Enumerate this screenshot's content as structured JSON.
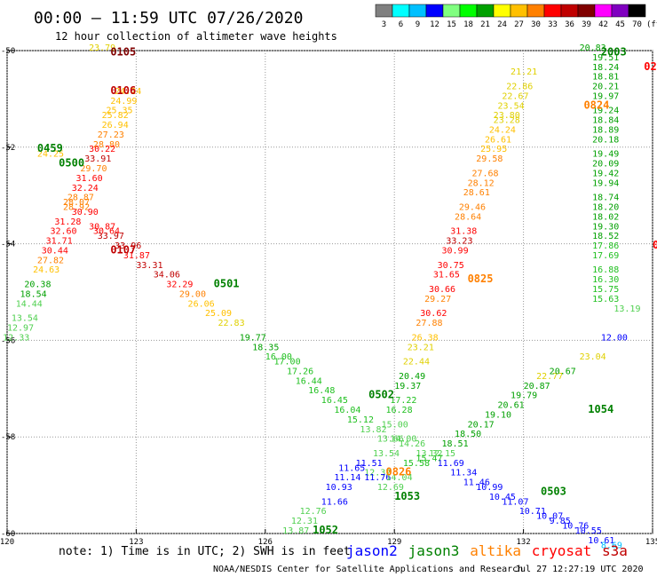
{
  "header": {
    "title": "00:00 – 11:59 UTC 07/26/2020",
    "subtitle": "12 hour collection of altimeter wave heights"
  },
  "colorbar": {
    "unit": "(ft)",
    "bins": [
      {
        "label": "3",
        "color": "#808080"
      },
      {
        "label": "6",
        "color": "#00ffff"
      },
      {
        "label": "9",
        "color": "#00c0ff"
      },
      {
        "label": "12",
        "color": "#0000ff"
      },
      {
        "label": "15",
        "color": "#80ff80"
      },
      {
        "label": "18",
        "color": "#00ff00"
      },
      {
        "label": "21",
        "color": "#00a000"
      },
      {
        "label": "24",
        "color": "#ffff00"
      },
      {
        "label": "27",
        "color": "#ffc000"
      },
      {
        "label": "30",
        "color": "#ff8000"
      },
      {
        "label": "33",
        "color": "#ff0000"
      },
      {
        "label": "36",
        "color": "#c00000"
      },
      {
        "label": "39",
        "color": "#800000"
      },
      {
        "label": "42",
        "color": "#ff00ff"
      },
      {
        "label": "45",
        "color": "#8000c0"
      },
      {
        "label": "70",
        "color": "#000000"
      }
    ]
  },
  "chart_data": {
    "type": "scatter",
    "xlim": [
      120,
      135
    ],
    "ylim": [
      -60,
      -50
    ],
    "x_ticks": [
      "120",
      "123",
      "126",
      "129",
      "132",
      "135"
    ],
    "y_ticks": [
      "-50",
      "-52",
      "-54",
      "-56",
      "-58",
      "-60"
    ],
    "grid": true,
    "series": [
      {
        "points": [
          {
            "x": 122.5,
            "y": -50.9,
            "v": "24.24"
          },
          {
            "x": 122.4,
            "y": -51.1,
            "v": "24.99"
          },
          {
            "x": 122.3,
            "y": -51.3,
            "v": "25.35"
          },
          {
            "x": 122.2,
            "y": -51.4,
            "v": "25.82"
          },
          {
            "x": 122.2,
            "y": -51.6,
            "v": "26.94"
          },
          {
            "x": 122.1,
            "y": -51.8,
            "v": "27.23"
          },
          {
            "x": 122.0,
            "y": -52.0,
            "v": "28.80"
          },
          {
            "x": 121.9,
            "y": -52.1,
            "v": "30.22"
          },
          {
            "x": 121.8,
            "y": -52.3,
            "v": "33.91"
          },
          {
            "x": 121.7,
            "y": -52.5,
            "v": "29.70"
          },
          {
            "x": 121.6,
            "y": -52.7,
            "v": "31.60"
          },
          {
            "x": 121.5,
            "y": -52.9,
            "v": "32.24"
          },
          {
            "x": 121.4,
            "y": -53.1,
            "v": "28.87"
          },
          {
            "x": 121.3,
            "y": -53.3,
            "v": "28.92"
          },
          {
            "x": 121.1,
            "y": -53.6,
            "v": "31.28"
          },
          {
            "x": 121.0,
            "y": -53.8,
            "v": "32.60"
          },
          {
            "x": 120.9,
            "y": -54.0,
            "v": "31.71"
          },
          {
            "x": 120.8,
            "y": -54.2,
            "v": "30.44"
          },
          {
            "x": 120.7,
            "y": -54.4,
            "v": "27.82"
          },
          {
            "x": 120.6,
            "y": -54.6,
            "v": "24.63"
          },
          {
            "x": 120.4,
            "y": -54.9,
            "v": "20.38"
          },
          {
            "x": 120.3,
            "y": -55.1,
            "v": "18.54"
          },
          {
            "x": 120.2,
            "y": -55.3,
            "v": "14.44"
          },
          {
            "x": 120.1,
            "y": -55.6,
            "v": "13.54"
          },
          {
            "x": 120.0,
            "y": -55.8,
            "v": "12.97"
          },
          {
            "x": 119.9,
            "y": -56.0,
            "v": "12.33"
          },
          {
            "x": 131.7,
            "y": -50.5,
            "v": "21.21"
          },
          {
            "x": 131.6,
            "y": -50.8,
            "v": "22.86"
          },
          {
            "x": 131.5,
            "y": -51.0,
            "v": "22.67"
          },
          {
            "x": 131.4,
            "y": -51.2,
            "v": "23.54"
          },
          {
            "x": 131.3,
            "y": -51.4,
            "v": "23.80"
          },
          {
            "x": 131.3,
            "y": -51.5,
            "v": "23.28"
          },
          {
            "x": 131.2,
            "y": -51.7,
            "v": "24.24"
          },
          {
            "x": 131.1,
            "y": -51.9,
            "v": "26.61"
          },
          {
            "x": 131.0,
            "y": -52.1,
            "v": "25.95"
          },
          {
            "x": 130.9,
            "y": -52.3,
            "v": "29.58"
          },
          {
            "x": 130.8,
            "y": -52.6,
            "v": "27.68"
          },
          {
            "x": 130.7,
            "y": -52.8,
            "v": "28.12"
          },
          {
            "x": 130.6,
            "y": -53.0,
            "v": "28.61"
          },
          {
            "x": 130.5,
            "y": -53.3,
            "v": "29.46"
          },
          {
            "x": 130.4,
            "y": -53.5,
            "v": "28.64"
          },
          {
            "x": 130.3,
            "y": -53.8,
            "v": "31.38"
          },
          {
            "x": 130.2,
            "y": -54.0,
            "v": "33.23"
          },
          {
            "x": 130.1,
            "y": -54.2,
            "v": "30.99"
          },
          {
            "x": 130.0,
            "y": -54.5,
            "v": "30.75"
          },
          {
            "x": 129.9,
            "y": -54.7,
            "v": "31.65"
          },
          {
            "x": 129.8,
            "y": -55.0,
            "v": "30.66"
          },
          {
            "x": 129.7,
            "y": -55.2,
            "v": "29.27"
          },
          {
            "x": 129.6,
            "y": -55.5,
            "v": "30.62"
          },
          {
            "x": 129.5,
            "y": -55.7,
            "v": "27.88"
          },
          {
            "x": 129.4,
            "y": -56.0,
            "v": "26.38"
          },
          {
            "x": 129.3,
            "y": -56.2,
            "v": "23.21"
          },
          {
            "x": 129.2,
            "y": -56.5,
            "v": "22.44"
          },
          {
            "x": 129.1,
            "y": -56.8,
            "v": "20.49"
          },
          {
            "x": 129.0,
            "y": -57.0,
            "v": "19.37"
          },
          {
            "x": 128.9,
            "y": -57.3,
            "v": "17.22"
          },
          {
            "x": 128.8,
            "y": -57.5,
            "v": "16.28"
          },
          {
            "x": 128.7,
            "y": -57.8,
            "v": "15.00"
          },
          {
            "x": 128.6,
            "y": -58.1,
            "v": "13.66"
          },
          {
            "x": 128.5,
            "y": -58.4,
            "v": "13.54"
          },
          {
            "x": 128.3,
            "y": -58.8,
            "v": "12.32"
          },
          {
            "x": 121.9,
            "y": -50.0,
            "v": "23.79"
          },
          {
            "x": 120.7,
            "y": -52.2,
            "v": "24.25"
          },
          {
            "x": 121.3,
            "y": -53.2,
            "v": "28.07"
          },
          {
            "x": 121.5,
            "y": -53.4,
            "v": "30.90"
          },
          {
            "x": 121.9,
            "y": -53.7,
            "v": "30.87"
          },
          {
            "x": 122.0,
            "y": -53.8,
            "v": "30.64"
          },
          {
            "x": 122.1,
            "y": -53.9,
            "v": "33.97"
          },
          {
            "x": 122.5,
            "y": -54.1,
            "v": "33.96"
          },
          {
            "x": 122.7,
            "y": -54.3,
            "v": "31.87"
          },
          {
            "x": 123.0,
            "y": -54.5,
            "v": "33.31"
          },
          {
            "x": 123.4,
            "y": -54.7,
            "v": "34.06"
          },
          {
            "x": 123.7,
            "y": -54.9,
            "v": "32.29"
          },
          {
            "x": 124.0,
            "y": -55.1,
            "v": "29.00"
          },
          {
            "x": 124.2,
            "y": -55.3,
            "v": "26.06"
          },
          {
            "x": 124.6,
            "y": -55.5,
            "v": "25.09"
          },
          {
            "x": 124.9,
            "y": -55.7,
            "v": "22.83"
          },
          {
            "x": 125.4,
            "y": -56.0,
            "v": "19.77"
          },
          {
            "x": 125.7,
            "y": -56.2,
            "v": "18.35"
          },
          {
            "x": 126.0,
            "y": -56.4,
            "v": "16.00"
          },
          {
            "x": 126.2,
            "y": -56.5,
            "v": "17.00"
          },
          {
            "x": 126.5,
            "y": -56.7,
            "v": "17.26"
          },
          {
            "x": 126.7,
            "y": -56.9,
            "v": "16.44"
          },
          {
            "x": 127.0,
            "y": -57.1,
            "v": "16.48"
          },
          {
            "x": 127.3,
            "y": -57.3,
            "v": "16.45"
          },
          {
            "x": 127.6,
            "y": -57.5,
            "v": "16.04"
          },
          {
            "x": 127.9,
            "y": -57.7,
            "v": "15.12"
          },
          {
            "x": 128.2,
            "y": -57.9,
            "v": "13.82"
          },
          {
            "x": 128.9,
            "y": -58.1,
            "v": "14.00"
          },
          {
            "x": 129.1,
            "y": -58.2,
            "v": "14.26"
          },
          {
            "x": 129.5,
            "y": -58.4,
            "v": "13.32"
          },
          {
            "x": 130.0,
            "y": -58.6,
            "v": "11.69"
          },
          {
            "x": 130.3,
            "y": -58.8,
            "v": "11.34"
          },
          {
            "x": 130.6,
            "y": -59.0,
            "v": "11.46"
          },
          {
            "x": 130.9,
            "y": -59.1,
            "v": "10.99"
          },
          {
            "x": 131.2,
            "y": -59.3,
            "v": "10.45"
          },
          {
            "x": 131.5,
            "y": -59.4,
            "v": "11.07"
          },
          {
            "x": 131.9,
            "y": -59.6,
            "v": "10.71"
          },
          {
            "x": 132.3,
            "y": -59.7,
            "v": "10.07"
          },
          {
            "x": 132.6,
            "y": -59.8,
            "v": "9.85"
          },
          {
            "x": 132.9,
            "y": -59.9,
            "v": "10.76"
          },
          {
            "x": 133.2,
            "y": -60.0,
            "v": "10.55"
          },
          {
            "x": 133.5,
            "y": -60.2,
            "v": "10.61"
          },
          {
            "x": 133.8,
            "y": -60.3,
            "v": "8.69"
          },
          {
            "x": 133.3,
            "y": -50.0,
            "v": "20.83"
          },
          {
            "x": 133.6,
            "y": -50.2,
            "v": "19.51"
          },
          {
            "x": 133.6,
            "y": -50.4,
            "v": "18.24"
          },
          {
            "x": 133.6,
            "y": -50.6,
            "v": "18.81"
          },
          {
            "x": 133.6,
            "y": -50.8,
            "v": "20.21"
          },
          {
            "x": 133.6,
            "y": -51.0,
            "v": "19.97"
          },
          {
            "x": 133.6,
            "y": -51.3,
            "v": "19.24"
          },
          {
            "x": 133.6,
            "y": -51.5,
            "v": "18.84"
          },
          {
            "x": 133.6,
            "y": -51.7,
            "v": "18.89"
          },
          {
            "x": 133.6,
            "y": -51.9,
            "v": "20.18"
          },
          {
            "x": 133.6,
            "y": -52.2,
            "v": "19.49"
          },
          {
            "x": 133.6,
            "y": -52.4,
            "v": "20.09"
          },
          {
            "x": 133.6,
            "y": -52.6,
            "v": "19.42"
          },
          {
            "x": 133.6,
            "y": -52.8,
            "v": "19.94"
          },
          {
            "x": 133.6,
            "y": -53.1,
            "v": "18.74"
          },
          {
            "x": 133.6,
            "y": -53.3,
            "v": "18.20"
          },
          {
            "x": 133.6,
            "y": -53.5,
            "v": "18.02"
          },
          {
            "x": 133.6,
            "y": -53.7,
            "v": "19.30"
          },
          {
            "x": 133.6,
            "y": -53.9,
            "v": "18.52"
          },
          {
            "x": 133.6,
            "y": -54.1,
            "v": "17.86"
          },
          {
            "x": 133.6,
            "y": -54.3,
            "v": "17.69"
          },
          {
            "x": 133.6,
            "y": -54.6,
            "v": "16.88"
          },
          {
            "x": 133.6,
            "y": -54.8,
            "v": "16.30"
          },
          {
            "x": 133.6,
            "y": -55.0,
            "v": "15.75"
          },
          {
            "x": 133.6,
            "y": -55.2,
            "v": "15.63"
          },
          {
            "x": 134.1,
            "y": -55.4,
            "v": "13.19"
          },
          {
            "x": 126.4,
            "y": -60.0,
            "v": "13.87"
          },
          {
            "x": 126.6,
            "y": -59.8,
            "v": "12.31"
          },
          {
            "x": 126.8,
            "y": -59.6,
            "v": "12.76"
          },
          {
            "x": 127.3,
            "y": -59.4,
            "v": "11.66"
          },
          {
            "x": 127.4,
            "y": -59.1,
            "v": "10.93"
          },
          {
            "x": 127.6,
            "y": -58.9,
            "v": "11.14"
          },
          {
            "x": 127.7,
            "y": -58.7,
            "v": "11.65"
          },
          {
            "x": 128.1,
            "y": -58.6,
            "v": "11.51"
          },
          {
            "x": 128.3,
            "y": -58.9,
            "v": "11.76"
          },
          {
            "x": 128.6,
            "y": -59.1,
            "v": "12.69"
          },
          {
            "x": 128.8,
            "y": -58.9,
            "v": "14.04"
          },
          {
            "x": 129.2,
            "y": -58.6,
            "v": "15.58"
          },
          {
            "x": 129.5,
            "y": -58.5,
            "v": "15.47"
          },
          {
            "x": 129.8,
            "y": -58.4,
            "v": "12.15"
          },
          {
            "x": 130.1,
            "y": -58.2,
            "v": "18.51"
          },
          {
            "x": 130.4,
            "y": -58.0,
            "v": "18.50"
          },
          {
            "x": 130.7,
            "y": -57.8,
            "v": "20.17"
          },
          {
            "x": 131.1,
            "y": -57.6,
            "v": "19.10"
          },
          {
            "x": 131.4,
            "y": -57.4,
            "v": "20.61"
          },
          {
            "x": 131.7,
            "y": -57.2,
            "v": "19.79"
          },
          {
            "x": 132.0,
            "y": -57.0,
            "v": "20.87"
          },
          {
            "x": 132.3,
            "y": -56.8,
            "v": "22.77"
          },
          {
            "x": 132.6,
            "y": -56.7,
            "v": "20.67"
          },
          {
            "x": 133.3,
            "y": -56.4,
            "v": "23.04"
          },
          {
            "x": 133.8,
            "y": -56.0,
            "v": "12.00"
          }
        ]
      }
    ],
    "pass_labels": [
      {
        "x": 122.4,
        "y": -50.1,
        "text": "0105",
        "color": "#800000"
      },
      {
        "x": 122.4,
        "y": -50.9,
        "text": "0106",
        "color": "#c00000"
      },
      {
        "x": 120.7,
        "y": -52.1,
        "text": "0459",
        "color": "#008000"
      },
      {
        "x": 121.2,
        "y": -52.4,
        "text": "0500",
        "color": "#008000"
      },
      {
        "x": 122.4,
        "y": -54.2,
        "text": "0107",
        "color": "#c00000"
      },
      {
        "x": 124.8,
        "y": -54.9,
        "text": "0501",
        "color": "#008000"
      },
      {
        "x": 128.4,
        "y": -57.2,
        "text": "0502",
        "color": "#008000"
      },
      {
        "x": 128.8,
        "y": -58.8,
        "text": "0826",
        "color": "#ff8000"
      },
      {
        "x": 129.0,
        "y": -59.3,
        "text": "1053",
        "color": "#008000"
      },
      {
        "x": 127.1,
        "y": -60.0,
        "text": "1052",
        "color": "#008000"
      },
      {
        "x": 133.4,
        "y": -51.2,
        "text": "0824",
        "color": "#ff8000"
      },
      {
        "x": 134.8,
        "y": -50.4,
        "text": "0248",
        "color": "#ff0000"
      },
      {
        "x": 133.8,
        "y": -50.1,
        "text": "2003",
        "color": "#008000"
      },
      {
        "x": 130.7,
        "y": -54.8,
        "text": "0825",
        "color": "#ff8000"
      },
      {
        "x": 133.5,
        "y": -57.5,
        "text": "1054",
        "color": "#008000"
      },
      {
        "x": 132.4,
        "y": -59.2,
        "text": "0503",
        "color": "#008000"
      },
      {
        "x": 135.0,
        "y": -54.1,
        "text": "02",
        "color": "#ff0000"
      }
    ]
  },
  "legend": {
    "note": "note: 1) Time is in UTC; 2) SWH is in feet",
    "satellites": [
      {
        "name": "jason2",
        "color": "#0000ff"
      },
      {
        "name": "jason3",
        "color": "#008000"
      },
      {
        "name": "altika",
        "color": "#ff8000"
      },
      {
        "name": "cryosat",
        "color": "#ff0000"
      },
      {
        "name": "s3a",
        "color": "#c00000"
      }
    ]
  },
  "footer": {
    "source": "NOAA/NESDIS Center for Satellite Applications and Research",
    "timestamp": "Jul 27 12:27:19 UTC 2020"
  }
}
